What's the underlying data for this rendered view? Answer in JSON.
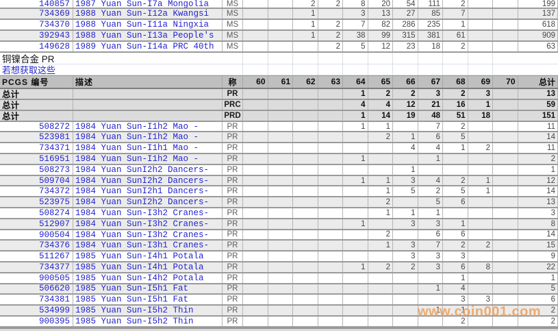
{
  "watermark": "www.coin001.com",
  "sections": {
    "alloy_label": "铜镍合金  PR",
    "link_label": "若想获取这些"
  },
  "colors": {
    "link_blue": "#2323cd",
    "header_bg": "#bfbfbf",
    "alt_row_bg": "#ebebeb",
    "summary_row_bg": "#dcdcdc",
    "watermark_orange": "#ee9f5a"
  },
  "table": {
    "header": {
      "id_label": "PCGS 编号",
      "desc_label": "描述",
      "grade_label": "称",
      "total_label": "总计",
      "grade_columns": [
        "60",
        "61",
        "62",
        "63",
        "64",
        "65",
        "66",
        "67",
        "68",
        "69",
        "70"
      ]
    },
    "top_rows": [
      {
        "id": "140857",
        "desc": "1987 Yuan Sun-I7a Mongolia",
        "grade": "MS",
        "values": [
          "",
          "",
          "2",
          "2",
          "8",
          "20",
          "54",
          "111",
          "2",
          "",
          ""
        ],
        "total": "199"
      },
      {
        "id": "734369",
        "desc": "1988 Yuan Sun-I12a Kwangsi",
        "grade": "MS",
        "values": [
          "",
          "",
          "1",
          "",
          "3",
          "13",
          "27",
          "85",
          "7",
          "",
          ""
        ],
        "total": "137"
      },
      {
        "id": "734370",
        "desc": "1988 Yuan Sun-I11a Ningxia",
        "grade": "MS",
        "values": [
          "",
          "",
          "1",
          "2",
          "7",
          "82",
          "286",
          "235",
          "1",
          "",
          ""
        ],
        "total": "618"
      },
      {
        "id": "392943",
        "desc": "1988 Yuan Sun-I13a People's",
        "grade": "MS",
        "values": [
          "",
          "",
          "1",
          "2",
          "38",
          "99",
          "315",
          "381",
          "61",
          "",
          ""
        ],
        "total": "909"
      },
      {
        "id": "149628",
        "desc": "1989 Yuan Sun-I14a PRC 40th",
        "grade": "MS",
        "values": [
          "",
          "",
          "",
          "2",
          "5",
          "12",
          "23",
          "18",
          "2",
          "",
          ""
        ],
        "total": "63"
      }
    ],
    "summary_rows": [
      {
        "label": "总计",
        "grade": "PR",
        "values": [
          "",
          "",
          "",
          "",
          "1",
          "2",
          "2",
          "3",
          "2",
          "3",
          ""
        ],
        "total": "13"
      },
      {
        "label": "总计",
        "grade": "PRC",
        "values": [
          "",
          "",
          "",
          "",
          "4",
          "4",
          "12",
          "21",
          "16",
          "1",
          ""
        ],
        "total": "59"
      },
      {
        "label": "总计",
        "grade": "PRD",
        "values": [
          "",
          "",
          "",
          "",
          "1",
          "14",
          "19",
          "48",
          "51",
          "18",
          ""
        ],
        "total": "151"
      }
    ],
    "detail_rows": [
      {
        "id": "508272",
        "desc": "1984 Yuan Sun-I1h2 Mao -",
        "grade": "PR",
        "values": [
          "",
          "",
          "",
          "",
          "1",
          "1",
          "",
          "7",
          "2",
          "",
          ""
        ],
        "total": "11"
      },
      {
        "id": "523981",
        "desc": "1984 Yuan Sun-I1h2 Mao -",
        "grade": "PR",
        "values": [
          "",
          "",
          "",
          "",
          "",
          "2",
          "1",
          "6",
          "5",
          "",
          ""
        ],
        "total": "14"
      },
      {
        "id": "734371",
        "desc": "1984 Yuan Sun-I1h1 Mao -",
        "grade": "PR",
        "values": [
          "",
          "",
          "",
          "",
          "",
          "",
          "4",
          "4",
          "1",
          "2",
          ""
        ],
        "total": "11"
      },
      {
        "id": "516951",
        "desc": "1984 Yuan Sun-I1h2 Mao -",
        "grade": "PR",
        "values": [
          "",
          "",
          "",
          "",
          "1",
          "",
          "",
          "1",
          "",
          "",
          ""
        ],
        "total": "2"
      },
      {
        "id": "508273",
        "desc": "1984 Yuan SunI2h2 Dancers-",
        "grade": "PR",
        "values": [
          "",
          "",
          "",
          "",
          "",
          "",
          "1",
          "",
          "",
          "",
          ""
        ],
        "total": "1"
      },
      {
        "id": "509704",
        "desc": "1984 Yuan SunI2h2 Dancers-",
        "grade": "PR",
        "values": [
          "",
          "",
          "",
          "",
          "1",
          "1",
          "3",
          "4",
          "2",
          "1",
          ""
        ],
        "total": "12"
      },
      {
        "id": "734372",
        "desc": "1984 Yuan SunI2h1 Dancers-",
        "grade": "PR",
        "values": [
          "",
          "",
          "",
          "",
          "",
          "1",
          "5",
          "2",
          "5",
          "1",
          ""
        ],
        "total": "14"
      },
      {
        "id": "523975",
        "desc": "1984 Yuan SunI2h2 Dancers-",
        "grade": "PR",
        "values": [
          "",
          "",
          "",
          "",
          "",
          "2",
          "",
          "5",
          "6",
          "",
          ""
        ],
        "total": "13"
      },
      {
        "id": "508274",
        "desc": "1984 Yuan Sun-I3h2 Cranes-",
        "grade": "PR",
        "values": [
          "",
          "",
          "",
          "",
          "",
          "1",
          "1",
          "1",
          "",
          "",
          ""
        ],
        "total": "3"
      },
      {
        "id": "512907",
        "desc": "1984 Yuan Sun-I3h2 Cranes-",
        "grade": "PR",
        "values": [
          "",
          "",
          "",
          "",
          "1",
          "",
          "3",
          "3",
          "1",
          "",
          ""
        ],
        "total": "8"
      },
      {
        "id": "900504",
        "desc": "1984 Yuan Sun-I3h2 Cranes-",
        "grade": "PR",
        "values": [
          "",
          "",
          "",
          "",
          "",
          "2",
          "",
          "6",
          "6",
          "",
          ""
        ],
        "total": "14"
      },
      {
        "id": "734376",
        "desc": "1984 Yuan Sun-I3h1 Cranes-",
        "grade": "PR",
        "values": [
          "",
          "",
          "",
          "",
          "",
          "1",
          "3",
          "7",
          "2",
          "2",
          ""
        ],
        "total": "15"
      },
      {
        "id": "511267",
        "desc": "1985 Yuan Sun-I4h1 Potala",
        "grade": "PR",
        "values": [
          "",
          "",
          "",
          "",
          "",
          "",
          "3",
          "3",
          "3",
          "",
          ""
        ],
        "total": "9"
      },
      {
        "id": "734377",
        "desc": "1985 Yuan Sun-I4h1 Potala",
        "grade": "PR",
        "values": [
          "",
          "",
          "",
          "",
          "1",
          "2",
          "2",
          "3",
          "6",
          "8",
          ""
        ],
        "total": "22"
      },
      {
        "id": "900505",
        "desc": "1985 Yuan Sun-I4h2 Potala",
        "grade": "PR",
        "values": [
          "",
          "",
          "",
          "",
          "",
          "",
          "",
          "",
          "1",
          "",
          ""
        ],
        "total": "1"
      },
      {
        "id": "506620",
        "desc": "1985 Yuan Sun-I5h1 Fat",
        "grade": "PR",
        "values": [
          "",
          "",
          "",
          "",
          "",
          "",
          "",
          "1",
          "4",
          "",
          ""
        ],
        "total": "5"
      },
      {
        "id": "734381",
        "desc": "1985 Yuan Sun-I5h1 Fat",
        "grade": "PR",
        "values": [
          "",
          "",
          "",
          "",
          "",
          "",
          "",
          "",
          "3",
          "3",
          ""
        ],
        "total": "6"
      },
      {
        "id": "534999",
        "desc": "1985 Yuan Sun-I5h2 Thin",
        "grade": "PR",
        "values": [
          "",
          "",
          "",
          "",
          "",
          "",
          "",
          "1",
          "1",
          "",
          ""
        ],
        "total": "2"
      },
      {
        "id": "900395",
        "desc": "1985 Yuan Sun-I5h2 Thin",
        "grade": "PR",
        "values": [
          "",
          "",
          "",
          "",
          "",
          "",
          "",
          "",
          "2",
          "",
          ""
        ],
        "total": "2"
      }
    ]
  }
}
